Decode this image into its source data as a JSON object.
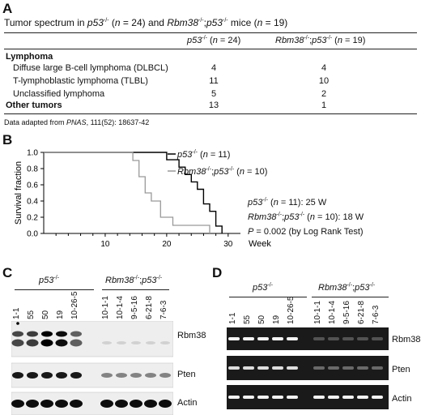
{
  "panelA": {
    "letter": "A",
    "title_parts": [
      "Tumor spectrum in ",
      "p53",
      "-/-",
      " (",
      "n",
      " = 24) and ",
      "Rbm38",
      "-/-",
      ";",
      "p53",
      "-/-",
      " mice (",
      "n",
      " = 19)"
    ],
    "col1_parts": [
      "p53",
      "-/-",
      " (",
      "n",
      " = 24)"
    ],
    "col2_parts": [
      "Rbm38",
      "-/-",
      ";",
      "p53",
      "-/-",
      " (",
      "n",
      " = 19)"
    ],
    "section": "Lymphoma",
    "rows": [
      {
        "label": "Diffuse large B-cell lymphoma (DLBCL)",
        "v1": "4",
        "v2": "4"
      },
      {
        "label": "T-lymphoblastic lymphoma (TLBL)",
        "v1": "11",
        "v2": "10"
      },
      {
        "label": "Unclassified lymphoma",
        "v1": "5",
        "v2": "2"
      }
    ],
    "other": {
      "label": "Other tumors",
      "v1": "13",
      "v2": "1"
    },
    "note_parts": [
      "Data adapted from ",
      "PNAS",
      ", 111(52): 18637-42"
    ]
  },
  "panelB": {
    "letter": "B",
    "ylabel": "Survival fraction",
    "xlabel": "Week",
    "legend1_parts": [
      "p53",
      "-/-",
      " (",
      "n",
      " = 11)"
    ],
    "legend2_parts": [
      "Rbm38",
      "-/-",
      ";",
      "p53",
      "-/-",
      " (",
      "n",
      " = 10)"
    ],
    "stat1_parts": [
      "p53",
      "-/-",
      " (",
      "n",
      " = 11): 25 W"
    ],
    "stat2_parts": [
      "Rbm38",
      "-/-",
      ";",
      "p53",
      "-/-",
      " (",
      "n",
      " = 10): 18 W"
    ],
    "stat3_parts": [
      "P",
      " = 0.002 (by Log Rank Test)"
    ],
    "colors": {
      "p53": "#000000",
      "dko": "#999999"
    }
  },
  "chart_data": {
    "type": "line",
    "title": "",
    "xlabel": "Week",
    "ylabel": "Survival fraction",
    "xlim": [
      0,
      32
    ],
    "ylim": [
      0,
      1.0
    ],
    "xticks": [
      10,
      20,
      30
    ],
    "yticks": [
      0,
      0.2,
      0.4,
      0.6,
      0.8,
      1.0
    ],
    "series": [
      {
        "name": "p53-/- (n = 11)",
        "x": [
          0,
          20,
          20,
          22,
          22,
          23,
          23,
          24,
          24,
          25,
          25,
          26,
          26,
          27,
          27,
          28,
          28,
          29,
          29
        ],
        "y": [
          1.0,
          1.0,
          0.909,
          0.909,
          0.818,
          0.818,
          0.727,
          0.727,
          0.636,
          0.636,
          0.545,
          0.545,
          0.364,
          0.364,
          0.273,
          0.273,
          0.091,
          0.091,
          0.0
        ]
      },
      {
        "name": "Rbm38-/-;p53-/- (n = 10)",
        "x": [
          0,
          14.5,
          14.5,
          15.5,
          15.5,
          16.5,
          16.5,
          17.5,
          17.5,
          19,
          19,
          21,
          21,
          24,
          24,
          27,
          27
        ],
        "y": [
          1.0,
          1.0,
          0.9,
          0.9,
          0.7,
          0.7,
          0.5,
          0.5,
          0.4,
          0.4,
          0.2,
          0.2,
          0.1,
          0.1,
          0.1,
          0.1,
          0.0
        ]
      }
    ]
  },
  "panelC": {
    "letter": "C",
    "group1_parts": [
      "p53",
      "-/-"
    ],
    "group2_parts": [
      "Rbm38",
      "-/-",
      ";",
      "p53",
      "-/-"
    ],
    "lanes": [
      "1-1",
      "55",
      "50",
      "19",
      "10-26-5",
      "10-1-1",
      "10-1-4",
      "9-5-16",
      "6-21-8",
      "7-6-3"
    ],
    "blots": [
      "Rbm38",
      "Pten",
      "Actin"
    ]
  },
  "panelD": {
    "letter": "D",
    "group1_parts": [
      "p53",
      "-/-"
    ],
    "group2_parts": [
      "Rbm38",
      "-/-",
      ";",
      "p53",
      "-/-"
    ],
    "lanes": [
      "1-1",
      "55",
      "50",
      "19",
      "10-26-5",
      "10-1-1",
      "10-1-4",
      "9-5-16",
      "6-21-8",
      "7-6-3"
    ],
    "gels": [
      "Rbm38",
      "Pten",
      "Actin"
    ]
  }
}
